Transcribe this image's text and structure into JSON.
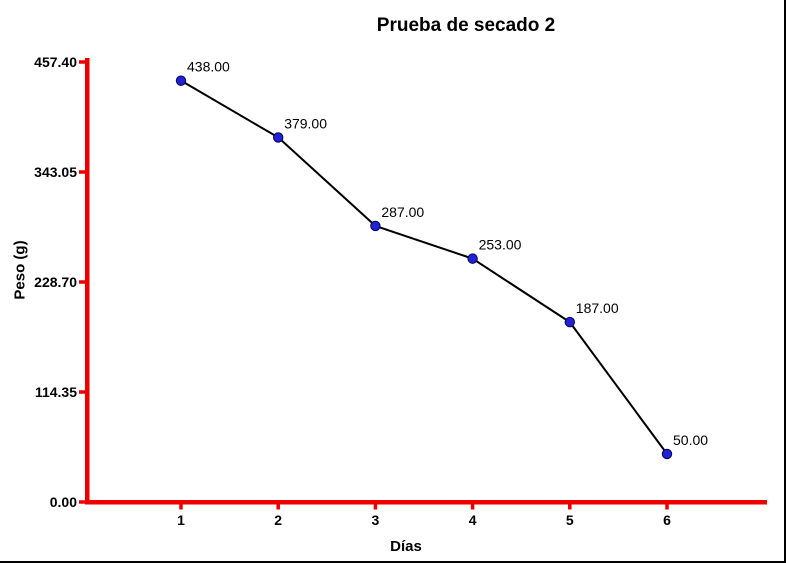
{
  "chart_data": {
    "type": "line",
    "title": "Prueba de secado 2",
    "xlabel": "Días",
    "ylabel": "Peso (g)",
    "x": [
      1,
      2,
      3,
      4,
      5,
      6
    ],
    "values": [
      438,
      379,
      287,
      253,
      187,
      50
    ],
    "point_labels": [
      "438.00",
      "379.00",
      "287.00",
      "253.00",
      "187.00",
      "50.00"
    ],
    "x_tick_labels": [
      "1",
      "2",
      "3",
      "4",
      "5",
      "6"
    ],
    "y_ticks": [
      {
        "v": 0,
        "label": "0.00"
      },
      {
        "v": 114.35,
        "label": "114.35"
      },
      {
        "v": 228.7,
        "label": "228.70"
      },
      {
        "v": 343.05,
        "label": "343.05"
      },
      {
        "v": 457.4,
        "label": "457.40"
      }
    ],
    "xlim": [
      1,
      6
    ],
    "ylim": [
      0,
      457.4
    ],
    "grid": false,
    "legend": "none",
    "colors": {
      "axis": "#EE0000",
      "series_line": "#000000",
      "marker_fill": "#2222CE",
      "marker_stroke": "#000066",
      "text": "#000000",
      "background": "#FFFFFF",
      "frame_border": "#000000"
    }
  }
}
